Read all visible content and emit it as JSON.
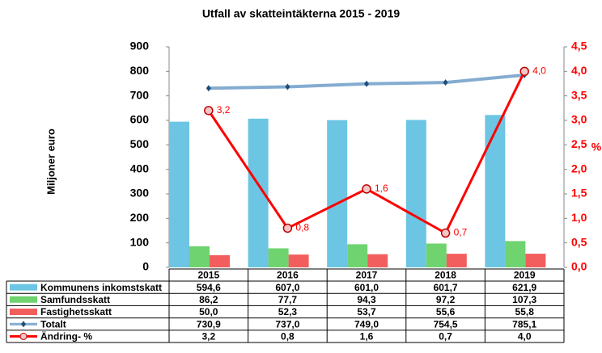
{
  "chart_data": {
    "type": "combo",
    "title": "Utfall av skatteintäkterna 2015 - 2019",
    "y_label": "Miljoner euro",
    "y2_label": "%",
    "categories": [
      "2015",
      "2016",
      "2017",
      "2018",
      "2019"
    ],
    "ylim": [
      0,
      900
    ],
    "yticks": [
      0,
      100,
      200,
      300,
      400,
      500,
      600,
      700,
      800,
      900
    ],
    "y2lim": [
      0,
      4.5
    ],
    "y2ticks": [
      {
        "value": 0,
        "label": "0,0"
      },
      {
        "value": 0.5,
        "label": "0,5"
      },
      {
        "value": 1,
        "label": "1,0"
      },
      {
        "value": 1.5,
        "label": "1,5"
      },
      {
        "value": 2,
        "label": "2,0"
      },
      {
        "value": 2.5,
        "label": "2,5"
      },
      {
        "value": 3,
        "label": "3,0"
      },
      {
        "value": 3.5,
        "label": "3,5"
      },
      {
        "value": 4,
        "label": "4,0"
      },
      {
        "value": 4.5,
        "label": "4,5"
      }
    ],
    "series": [
      {
        "name": "Kommunens inkomstskatt",
        "type": "bar",
        "color": "#6cc5e2",
        "values": [
          594.6,
          607.0,
          601.0,
          601.7,
          621.9
        ],
        "value_labels": [
          "594,6",
          "607,0",
          "601,0",
          "601,7",
          "621,9"
        ]
      },
      {
        "name": "Samfundsskatt",
        "type": "bar",
        "color": "#6fd36f",
        "values": [
          86.2,
          77.7,
          94.3,
          97.2,
          107.3
        ],
        "value_labels": [
          "86,2",
          "77,7",
          "94,3",
          "97,2",
          "107,3"
        ]
      },
      {
        "name": "Fastighetsskatt",
        "type": "bar",
        "color": "#f25e5e",
        "values": [
          50.0,
          52.3,
          53.7,
          55.6,
          55.8
        ],
        "value_labels": [
          "50,0",
          "52,3",
          "53,7",
          "55,6",
          "55,8"
        ]
      },
      {
        "name": "Totalt",
        "type": "line",
        "color": "#84acd0",
        "values": [
          730.9,
          737.0,
          749.0,
          754.5,
          785.1
        ],
        "value_labels": [
          "730,9",
          "737,0",
          "749,0",
          "754,5",
          "785,1"
        ]
      },
      {
        "name": "Ändring- %",
        "type": "line",
        "axis": "y2",
        "color": "#ff0000",
        "values": [
          3.2,
          0.8,
          1.6,
          0.7,
          4.0
        ],
        "value_labels": [
          "3,2",
          "0,8",
          "1,6",
          "0,7",
          "4,0"
        ]
      }
    ]
  }
}
